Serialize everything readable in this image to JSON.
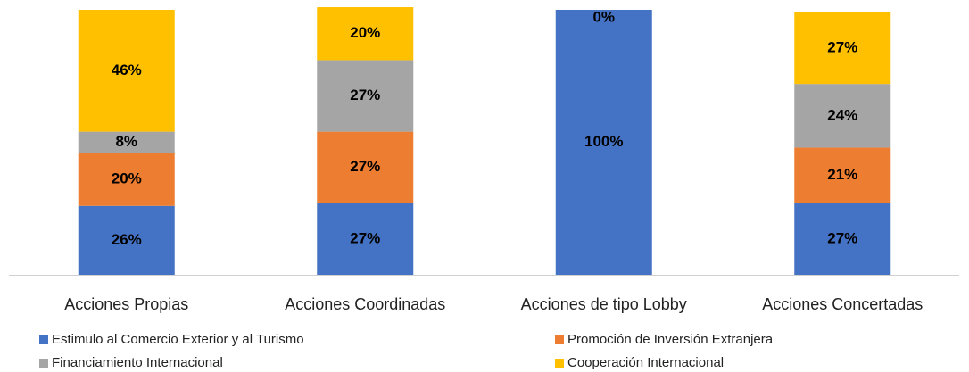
{
  "chart_data": {
    "type": "stacked_bar",
    "categories": [
      "Acciones Propias",
      "Acciones Coordinadas",
      "Acciones de tipo Lobby",
      "Acciones Concertadas"
    ],
    "ylim": [
      0,
      100
    ],
    "series": [
      {
        "name": "Estimulo al Comercio Exterior y al Turismo",
        "color": "#4472c4",
        "values": [
          26,
          27,
          100,
          27
        ],
        "value_labels": [
          "26%",
          "27%",
          "100%",
          "27%"
        ]
      },
      {
        "name": "Promoción de Inversión Extranjera",
        "color": "#ed7d31",
        "values": [
          20,
          27,
          0,
          21
        ],
        "value_labels": [
          "20%",
          "27%",
          null,
          "21%"
        ]
      },
      {
        "name": "Financiamiento Internacional",
        "color": "#a5a5a5",
        "values": [
          8,
          27,
          0,
          24
        ],
        "value_labels": [
          "8%",
          "27%",
          null,
          "24%"
        ]
      },
      {
        "name": "Cooperación Internacional",
        "color": "#ffc000",
        "values": [
          46,
          20,
          0,
          27
        ],
        "value_labels": [
          "46%",
          "20%",
          "0%",
          "27%"
        ]
      }
    ]
  }
}
